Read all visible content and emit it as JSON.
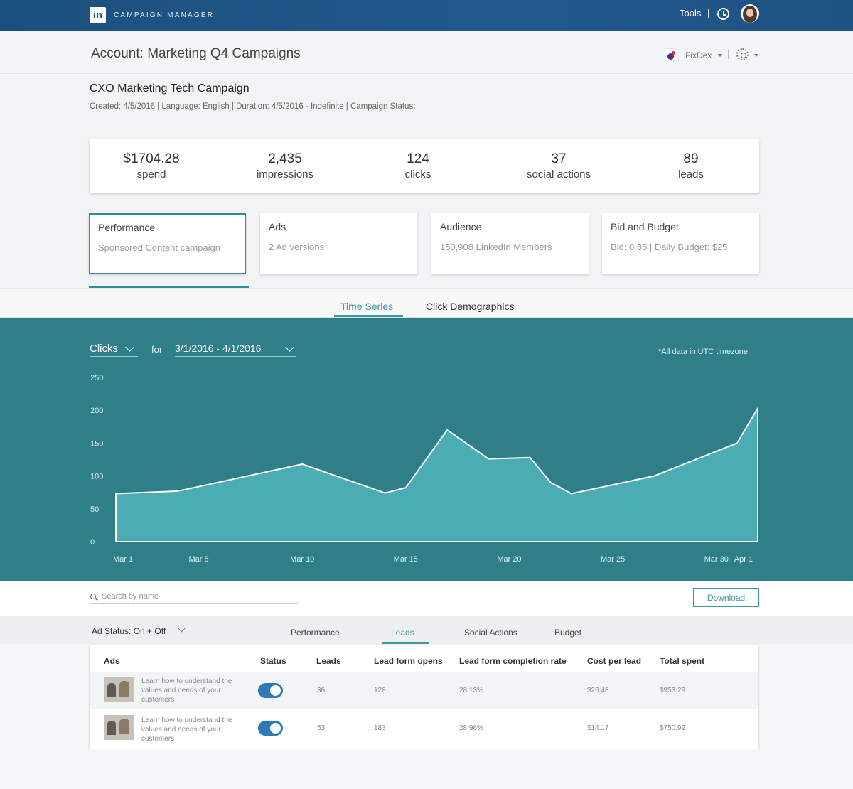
{
  "header": {
    "logo_text": "in",
    "app_name": "CAMPAIGN MANAGER",
    "tools_label": "Tools"
  },
  "account": {
    "title": "Account: Marketing Q4 Campaigns",
    "org_name": "FixDex"
  },
  "campaign": {
    "title": "CXO Marketing Tech Campaign",
    "meta": "Created: 4/5/2016  |  Language: English  |  Duration: 4/5/2016 - Indefinite  | Campaign Status:"
  },
  "stats": [
    {
      "value": "$1704.28",
      "label": "spend"
    },
    {
      "value": "2,435",
      "label": "impressions"
    },
    {
      "value": "124",
      "label": "clicks"
    },
    {
      "value": "37",
      "label": "social actions"
    },
    {
      "value": "89",
      "label": "leads"
    }
  ],
  "cards": [
    {
      "title": "Performance",
      "desc": "Sponsored Content campaign"
    },
    {
      "title": "Ads",
      "desc": "2 Ad versions"
    },
    {
      "title": "Audience",
      "desc": "150,908 LinkedIn Members"
    },
    {
      "title": "Bid and Budget",
      "desc": "Bid: 0.85  |  Daily Budget: $25"
    }
  ],
  "view_tabs": {
    "time_series": "Time Series",
    "click_demographics": "Click Demographics"
  },
  "chart_controls": {
    "metric": "Clicks",
    "for_label": "for",
    "date_range": "3/1/2016 - 4/1/2016",
    "tz_note": "*All data in UTC timezone"
  },
  "chart_data": {
    "type": "area",
    "title": "",
    "xlabel": "",
    "ylabel": "",
    "ylim": [
      0,
      250
    ],
    "y_ticks": [
      0,
      50,
      100,
      150,
      200,
      250
    ],
    "x_ticks": [
      "Mar 1",
      "Mar 5",
      "Mar 10",
      "Mar 15",
      "Mar 20",
      "Mar 25",
      "Mar 30",
      "Apr 1"
    ],
    "x_tick_days": [
      1,
      5,
      10,
      15,
      20,
      25,
      30,
      32
    ],
    "grid": false,
    "series": [
      {
        "x": [
          1,
          4,
          10,
          14,
          15,
          17,
          19,
          21,
          22,
          23,
          27,
          31,
          32
        ],
        "y": [
          73,
          77,
          118,
          74,
          82,
          170,
          126,
          128,
          90,
          73,
          100,
          150,
          203
        ]
      }
    ],
    "colors": {
      "fill": "#4aadb3",
      "line": "#ffffff",
      "background": "#2e7f88"
    }
  },
  "search": {
    "placeholder": "Search by name"
  },
  "download_label": "Download",
  "filter": {
    "ad_status": "Ad Status: On + Off"
  },
  "table_tabs": [
    "Performance",
    "Leads",
    "Social Actions",
    "Budget"
  ],
  "table": {
    "headers": [
      "Ads",
      "Status",
      "Leads",
      "Lead form opens",
      "Lead form completion rate",
      "Cost per lead",
      "Total spent"
    ],
    "rows": [
      {
        "ad_text": "Learn how to understand the values and needs of your customers",
        "leads": "36",
        "opens": "128",
        "rate": "28.13%",
        "cpl": "$26.48",
        "spent": "$953.29"
      },
      {
        "ad_text": "Learn how to understand the values and needs of your customers",
        "leads": "53",
        "opens": "183",
        "rate": "28.96%",
        "cpl": "$14.17",
        "spent": "$750.99"
      }
    ]
  },
  "colors": {
    "topbar": "#1b4f7e",
    "accent": "#3e98a3",
    "chart_bg": "#2e7f88",
    "toggle": "#2c7ab8"
  }
}
